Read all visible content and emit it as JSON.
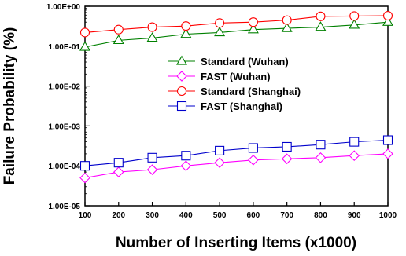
{
  "chart_data": {
    "type": "line",
    "xlabel": "Number of Inserting Items (x1000)",
    "ylabel": "Failure Probability (%)",
    "x": [
      100,
      200,
      300,
      400,
      500,
      600,
      700,
      800,
      900,
      1000
    ],
    "xlim": [
      100,
      1000
    ],
    "ylim": [
      1e-05,
      1
    ],
    "yscale": "log",
    "x_tick_labels": [
      "100",
      "200",
      "300",
      "400",
      "500",
      "600",
      "700",
      "800",
      "900",
      "1000"
    ],
    "y_tick_values": [
      1e-05,
      0.0001,
      0.001,
      0.01,
      0.1,
      1
    ],
    "y_tick_labels": [
      "1.00E-05",
      "1.00E-04",
      "1.00E-03",
      "1.00E-02",
      "1.00E-01",
      "1.00E+00"
    ],
    "grid": false,
    "legend_position": "inside-upper-right",
    "series": [
      {
        "name": "Standard (Wuhan)",
        "color": "#008000",
        "marker": "triangle",
        "values": [
          0.095,
          0.14,
          0.16,
          0.2,
          0.22,
          0.26,
          0.28,
          0.3,
          0.34,
          0.4
        ]
      },
      {
        "name": "FAST (Wuhan)",
        "color": "#ff00ff",
        "marker": "diamond",
        "values": [
          5e-05,
          7e-05,
          8e-05,
          0.0001,
          0.00012,
          0.00014,
          0.00015,
          0.00016,
          0.00018,
          0.0002
        ]
      },
      {
        "name": "Standard (Shanghai)",
        "color": "#ff0000",
        "marker": "circle",
        "values": [
          0.22,
          0.26,
          0.3,
          0.32,
          0.38,
          0.4,
          0.45,
          0.56,
          0.57,
          0.58
        ]
      },
      {
        "name": "FAST (Shanghai)",
        "color": "#0000cc",
        "marker": "square",
        "values": [
          0.0001,
          0.00012,
          0.00016,
          0.00018,
          0.00024,
          0.00028,
          0.0003,
          0.00034,
          0.0004,
          0.00044
        ]
      }
    ]
  }
}
